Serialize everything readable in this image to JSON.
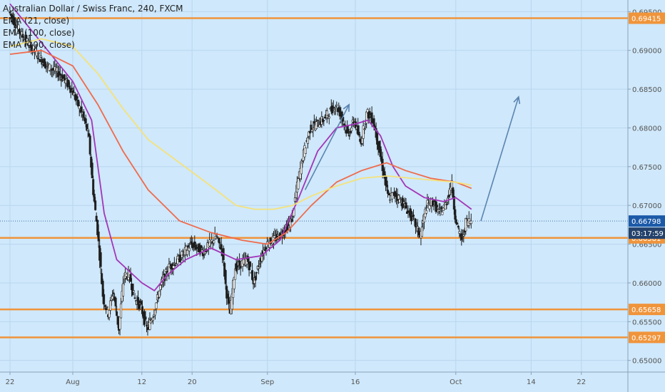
{
  "legend": {
    "title": "Australian Dollar / Swiss Franc, 240, FXCM",
    "indicators": [
      "EMA (21, close)",
      "EMA (100, close)",
      "EMA (200, close)"
    ]
  },
  "colors": {
    "background": "#cfe8fb",
    "grid": "#b9d6ee",
    "support_line": "#f0943a",
    "candle": "#1e1e1e",
    "ema21": "#a335b8",
    "ema100": "#f06a4b",
    "ema200": "#f5e27a",
    "projection_arrow": "#5b84b1",
    "price_badge": "#1c5aa8",
    "timer_badge": "#24426b"
  },
  "chart_data": {
    "type": "line",
    "title": "Australian Dollar / Swiss Franc, 240, FXCM",
    "ylim": [
      0.6485,
      0.6965
    ],
    "y_ticks": [
      "0.69500",
      "0.69000",
      "0.68500",
      "0.68000",
      "0.67500",
      "0.67000",
      "0.66500",
      "0.66000",
      "0.65500",
      "0.65000"
    ],
    "y_tick_values": [
      0.695,
      0.69,
      0.685,
      0.68,
      0.675,
      0.67,
      0.665,
      0.66,
      0.655,
      0.65
    ],
    "x_ticks": [
      "22",
      "Aug",
      "12",
      "20",
      "Sep",
      "16",
      "Oct",
      "14",
      "22"
    ],
    "x_tick_days": [
      0,
      10,
      21,
      29,
      41,
      55,
      71,
      83,
      91
    ],
    "x_range_days": [
      0,
      100
    ],
    "horizontal_levels": [
      {
        "label": "0.69415",
        "value": 0.69415
      },
      {
        "label": "0.66581",
        "value": 0.66581
      },
      {
        "label": "0.65658",
        "value": 0.65658
      },
      {
        "label": "0.65297",
        "value": 0.65297
      }
    ],
    "current_price": {
      "label": "0.66798",
      "value": 0.66798
    },
    "timer": {
      "label": "03:17:59"
    },
    "price_path": [
      [
        0,
        0.695
      ],
      [
        2,
        0.692
      ],
      [
        4,
        0.69
      ],
      [
        6,
        0.688
      ],
      [
        8,
        0.687
      ],
      [
        10,
        0.685
      ],
      [
        11,
        0.683
      ],
      [
        12,
        0.681
      ],
      [
        12.7,
        0.679
      ],
      [
        13.4,
        0.672
      ],
      [
        14.2,
        0.666
      ],
      [
        15,
        0.658
      ],
      [
        15.8,
        0.656
      ],
      [
        16.6,
        0.659
      ],
      [
        17.5,
        0.654
      ],
      [
        18.3,
        0.661
      ],
      [
        19.2,
        0.661
      ],
      [
        20,
        0.658
      ],
      [
        21,
        0.657
      ],
      [
        22,
        0.654
      ],
      [
        23,
        0.656
      ],
      [
        24.3,
        0.66
      ],
      [
        25.5,
        0.662
      ],
      [
        27,
        0.663
      ],
      [
        29,
        0.665
      ],
      [
        31,
        0.664
      ],
      [
        33,
        0.666
      ],
      [
        34,
        0.664
      ],
      [
        34.6,
        0.659
      ],
      [
        35.2,
        0.656
      ],
      [
        36,
        0.662
      ],
      [
        38,
        0.663
      ],
      [
        39,
        0.66
      ],
      [
        40,
        0.663
      ],
      [
        41,
        0.665
      ],
      [
        43,
        0.666
      ],
      [
        45,
        0.668
      ],
      [
        46,
        0.673
      ],
      [
        47,
        0.677
      ],
      [
        48,
        0.68
      ],
      [
        50,
        0.681
      ],
      [
        52,
        0.683
      ],
      [
        53,
        0.6815
      ],
      [
        54,
        0.679
      ],
      [
        55,
        0.681
      ],
      [
        56,
        0.678
      ],
      [
        57,
        0.682
      ],
      [
        58,
        0.681
      ],
      [
        59,
        0.677
      ],
      [
        59.7,
        0.674
      ],
      [
        60.4,
        0.671
      ],
      [
        61.5,
        0.6715
      ],
      [
        63,
        0.67
      ],
      [
        64.5,
        0.668
      ],
      [
        65.5,
        0.666
      ],
      [
        66.5,
        0.67
      ],
      [
        67.5,
        0.6705
      ],
      [
        68.5,
        0.669
      ],
      [
        69.5,
        0.67
      ],
      [
        70.5,
        0.673
      ],
      [
        71,
        0.669
      ],
      [
        71.6,
        0.6665
      ],
      [
        72.2,
        0.6655
      ],
      [
        72.8,
        0.668
      ],
      [
        73.5,
        0.668
      ]
    ],
    "series": [
      {
        "name": "EMA (21, close)",
        "values": [
          [
            0,
            0.696
          ],
          [
            5,
            0.691
          ],
          [
            10,
            0.686
          ],
          [
            13,
            0.681
          ],
          [
            15,
            0.669
          ],
          [
            17,
            0.663
          ],
          [
            19,
            0.6615
          ],
          [
            21,
            0.66
          ],
          [
            23,
            0.659
          ],
          [
            25,
            0.661
          ],
          [
            28,
            0.663
          ],
          [
            32,
            0.6645
          ],
          [
            36,
            0.663
          ],
          [
            40,
            0.6635
          ],
          [
            43,
            0.6655
          ],
          [
            46,
            0.671
          ],
          [
            49,
            0.677
          ],
          [
            52,
            0.68
          ],
          [
            55,
            0.6805
          ],
          [
            57,
            0.681
          ],
          [
            59,
            0.679
          ],
          [
            61,
            0.675
          ],
          [
            63,
            0.6725
          ],
          [
            66,
            0.671
          ],
          [
            69,
            0.6705
          ],
          [
            71,
            0.671
          ],
          [
            73.5,
            0.6695
          ]
        ]
      },
      {
        "name": "EMA (100, close)",
        "values": [
          [
            0,
            0.6895
          ],
          [
            5,
            0.69
          ],
          [
            10,
            0.688
          ],
          [
            14,
            0.683
          ],
          [
            18,
            0.677
          ],
          [
            22,
            0.672
          ],
          [
            27,
            0.668
          ],
          [
            32,
            0.6665
          ],
          [
            37,
            0.6655
          ],
          [
            41,
            0.665
          ],
          [
            44,
            0.6665
          ],
          [
            48,
            0.67
          ],
          [
            52,
            0.673
          ],
          [
            56,
            0.6745
          ],
          [
            60,
            0.6755
          ],
          [
            63,
            0.6745
          ],
          [
            67,
            0.6735
          ],
          [
            71,
            0.673
          ],
          [
            73.5,
            0.6722
          ]
        ]
      },
      {
        "name": "EMA (200, close)",
        "values": [
          [
            0,
            0.6905
          ],
          [
            5,
            0.6915
          ],
          [
            10,
            0.6905
          ],
          [
            14,
            0.687
          ],
          [
            18,
            0.6825
          ],
          [
            22,
            0.6785
          ],
          [
            27,
            0.6755
          ],
          [
            32,
            0.6725
          ],
          [
            36,
            0.67
          ],
          [
            39,
            0.6695
          ],
          [
            42,
            0.6695
          ],
          [
            45,
            0.67
          ],
          [
            48,
            0.6712
          ],
          [
            52,
            0.6725
          ],
          [
            56,
            0.6735
          ],
          [
            60,
            0.6738
          ],
          [
            64,
            0.6735
          ],
          [
            68,
            0.6732
          ],
          [
            71,
            0.673
          ],
          [
            73.5,
            0.6726
          ]
        ]
      }
    ],
    "arrows": [
      {
        "from": [
          47,
          0.672
        ],
        "to": [
          54,
          0.683
        ]
      },
      {
        "from": [
          75,
          0.668
        ],
        "to": [
          81,
          0.684
        ]
      }
    ]
  }
}
